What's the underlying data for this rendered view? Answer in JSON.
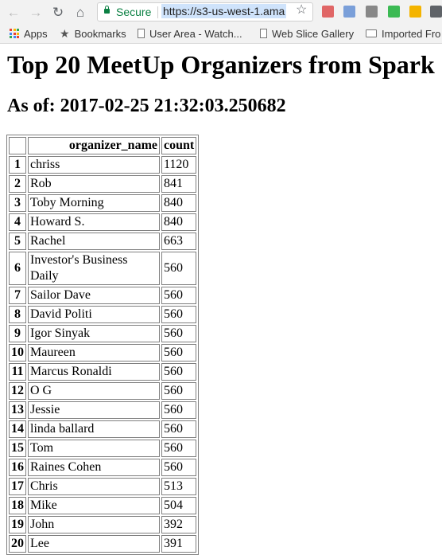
{
  "browser": {
    "secure_label": "Secure",
    "url": "https://s3-us-west-1.ama",
    "nav": {
      "back": "←",
      "forward": "→",
      "reload": "↻",
      "home": "⌂",
      "bookmark_star": "☆"
    },
    "extension_colors": [
      "#e06666",
      "#7a9fd9",
      "#888888",
      "#3cba54",
      "#f4b400",
      "#5f6368"
    ]
  },
  "bookmarks": {
    "items": [
      {
        "label": "Apps",
        "icon": "apps-grid-icon"
      },
      {
        "label": "Bookmarks",
        "icon": "star-icon"
      },
      {
        "label": "User Area - Watch...",
        "icon": "page-icon"
      },
      {
        "label": "Web Slice Gallery",
        "icon": "page-icon"
      },
      {
        "label": "Imported Fro",
        "icon": "folder-icon"
      }
    ],
    "apps_colors": [
      "#ea4335",
      "#fbbc05",
      "#34a853",
      "#4285f4",
      "#ea4335",
      "#fbbc05",
      "#34a853",
      "#4285f4",
      "#ea4335"
    ]
  },
  "page": {
    "title": "Top 20 MeetUp Organizers from Spark",
    "subtitle": "As of: 2017-02-25 21:32:03.250682"
  },
  "table": {
    "columns": [
      "",
      "organizer_name",
      "count"
    ],
    "rows": [
      {
        "index": "1",
        "name": "chriss",
        "count": "1120"
      },
      {
        "index": "2",
        "name": "Rob",
        "count": "841"
      },
      {
        "index": "3",
        "name": "Toby Morning",
        "count": "840"
      },
      {
        "index": "4",
        "name": "Howard S.",
        "count": "840"
      },
      {
        "index": "5",
        "name": "Rachel",
        "count": "663"
      },
      {
        "index": "6",
        "name": "Investor's Business Daily",
        "count": "560"
      },
      {
        "index": "7",
        "name": "Sailor Dave",
        "count": "560"
      },
      {
        "index": "8",
        "name": "David Politi",
        "count": "560"
      },
      {
        "index": "9",
        "name": "Igor Sinyak",
        "count": "560"
      },
      {
        "index": "10",
        "name": "Maureen",
        "count": "560"
      },
      {
        "index": "11",
        "name": "Marcus Ronaldi",
        "count": "560"
      },
      {
        "index": "12",
        "name": "O G",
        "count": "560"
      },
      {
        "index": "13",
        "name": "Jessie",
        "count": "560"
      },
      {
        "index": "14",
        "name": "linda ballard",
        "count": "560"
      },
      {
        "index": "15",
        "name": "Tom",
        "count": "560"
      },
      {
        "index": "16",
        "name": "Raines Cohen",
        "count": "560"
      },
      {
        "index": "17",
        "name": "Chris",
        "count": "513"
      },
      {
        "index": "18",
        "name": "Mike",
        "count": "504"
      },
      {
        "index": "19",
        "name": "John",
        "count": "392"
      },
      {
        "index": "20",
        "name": "Lee",
        "count": "391"
      }
    ]
  }
}
